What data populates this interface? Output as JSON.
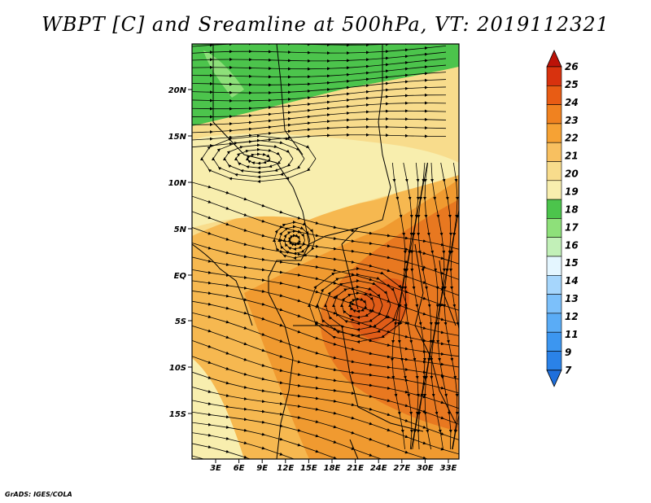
{
  "title": "WBPT [C] and Sreamline at 500hPa, VT: 2019112321",
  "credit": "GrADS: IGES/COLA",
  "map": {
    "lat_labels": [
      "20N",
      "15N",
      "10N",
      "5N",
      "EQ",
      "5S",
      "10S",
      "15S"
    ],
    "lon_labels": [
      "3E",
      "6E",
      "9E",
      "12E",
      "15E",
      "18E",
      "21E",
      "24E",
      "27E",
      "30E",
      "33E"
    ]
  },
  "colorbar": {
    "labels": [
      "7",
      "9",
      "11",
      "12",
      "13",
      "14",
      "15",
      "16",
      "17",
      "18",
      "19",
      "20",
      "21",
      "22",
      "23",
      "24",
      "25",
      "26"
    ],
    "colors": [
      "#1e6fdc",
      "#2a82e8",
      "#3c96f0",
      "#5aacf6",
      "#7cc0fa",
      "#a6d6fc",
      "#e4f6ff",
      "#c2f0b8",
      "#8ee07a",
      "#4cc44c",
      "#f8eeae",
      "#f8dc8c",
      "#f8c060",
      "#f6a234",
      "#f08220",
      "#e85c14",
      "#d8320e",
      "#bc1208"
    ]
  },
  "field_colors": {
    "green": "#4cc44c",
    "light_yellow": "#f8eeae",
    "yellow": "#f8dc8c",
    "orange_light": "#f6b850",
    "orange": "#f09a30",
    "dark_orange": "#e87820",
    "red_orange": "#e05c18"
  }
}
